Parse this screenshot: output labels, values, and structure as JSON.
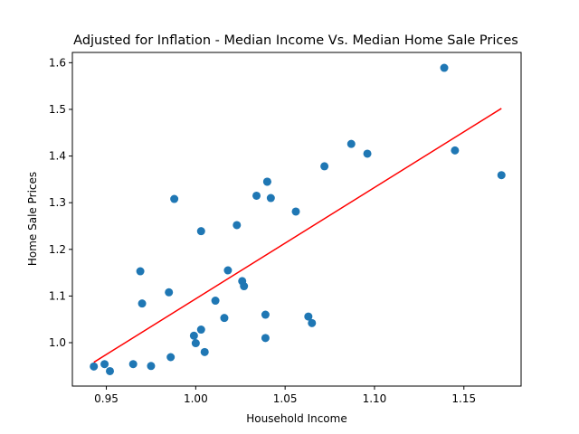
{
  "chart_data": {
    "type": "scatter",
    "title": "Adjusted for Inflation - Median Income Vs. Median Home Sale Prices",
    "xlabel": "Household Income",
    "ylabel": "Home Sale Prices",
    "xlim": [
      0.931,
      1.182
    ],
    "ylim": [
      0.907,
      1.622
    ],
    "xticks": [
      0.95,
      1.0,
      1.05,
      1.1,
      1.15
    ],
    "xtick_labels": [
      "0.95",
      "1.00",
      "1.05",
      "1.10",
      "1.15"
    ],
    "yticks": [
      1.0,
      1.1,
      1.2,
      1.3,
      1.4,
      1.5,
      1.6
    ],
    "ytick_labels": [
      "1.0",
      "1.1",
      "1.2",
      "1.3",
      "1.4",
      "1.5",
      "1.6"
    ],
    "grid": false,
    "colors": {
      "points": "#1f77b4",
      "fit_line": "#ff0000"
    },
    "points": {
      "x": [
        0.943,
        0.949,
        0.952,
        0.965,
        0.969,
        0.97,
        0.975,
        0.985,
        0.986,
        0.988,
        0.999,
        1.0,
        1.003,
        1.003,
        1.005,
        1.011,
        1.016,
        1.018,
        1.023,
        1.026,
        1.027,
        1.034,
        1.039,
        1.039,
        1.04,
        1.04,
        1.042,
        1.056,
        1.063,
        1.065,
        1.072,
        1.087,
        1.096,
        1.139,
        1.145,
        1.171
      ],
      "y": [
        0.949,
        0.954,
        0.939,
        0.954,
        1.153,
        1.084,
        0.95,
        1.108,
        0.969,
        1.308,
        1.015,
        0.999,
        1.239,
        1.028,
        0.98,
        1.09,
        1.053,
        1.155,
        1.252,
        1.132,
        1.121,
        1.315,
        1.06,
        1.01,
        1.345,
        1.345,
        1.31,
        1.281,
        1.056,
        1.042,
        1.378,
        1.426,
        1.405,
        1.589,
        1.412,
        1.359
      ]
    },
    "fit_line": {
      "x": [
        0.943,
        1.171
      ],
      "y": [
        0.958,
        1.502
      ]
    }
  }
}
